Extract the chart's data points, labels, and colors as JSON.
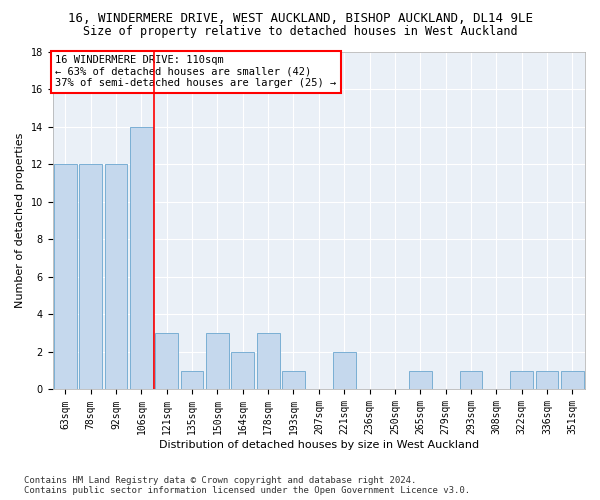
{
  "title_line1": "16, WINDERMERE DRIVE, WEST AUCKLAND, BISHOP AUCKLAND, DL14 9LE",
  "title_line2": "Size of property relative to detached houses in West Auckland",
  "xlabel": "Distribution of detached houses by size in West Auckland",
  "ylabel": "Number of detached properties",
  "footnote": "Contains HM Land Registry data © Crown copyright and database right 2024.\nContains public sector information licensed under the Open Government Licence v3.0.",
  "categories": [
    "63sqm",
    "78sqm",
    "92sqm",
    "106sqm",
    "121sqm",
    "135sqm",
    "150sqm",
    "164sqm",
    "178sqm",
    "193sqm",
    "207sqm",
    "221sqm",
    "236sqm",
    "250sqm",
    "265sqm",
    "279sqm",
    "293sqm",
    "308sqm",
    "322sqm",
    "336sqm",
    "351sqm"
  ],
  "values": [
    12,
    12,
    12,
    14,
    3,
    1,
    3,
    2,
    3,
    1,
    0,
    2,
    0,
    0,
    1,
    0,
    1,
    0,
    1,
    1,
    1
  ],
  "bar_color": "#c5d8ed",
  "bar_edge_color": "#7aafd4",
  "vline_x": 3.5,
  "vline_color": "red",
  "annotation_text": "16 WINDERMERE DRIVE: 110sqm\n← 63% of detached houses are smaller (42)\n37% of semi-detached houses are larger (25) →",
  "annotation_box_color": "white",
  "annotation_box_edgecolor": "red",
  "ylim": [
    0,
    18
  ],
  "yticks": [
    0,
    2,
    4,
    6,
    8,
    10,
    12,
    14,
    16,
    18
  ],
  "bg_color": "#eaf0f7",
  "grid_color": "#ffffff",
  "title_fontsize": 9,
  "subtitle_fontsize": 8.5,
  "axis_label_fontsize": 8,
  "tick_fontsize": 7,
  "annotation_fontsize": 7.5,
  "footnote_fontsize": 6.5
}
